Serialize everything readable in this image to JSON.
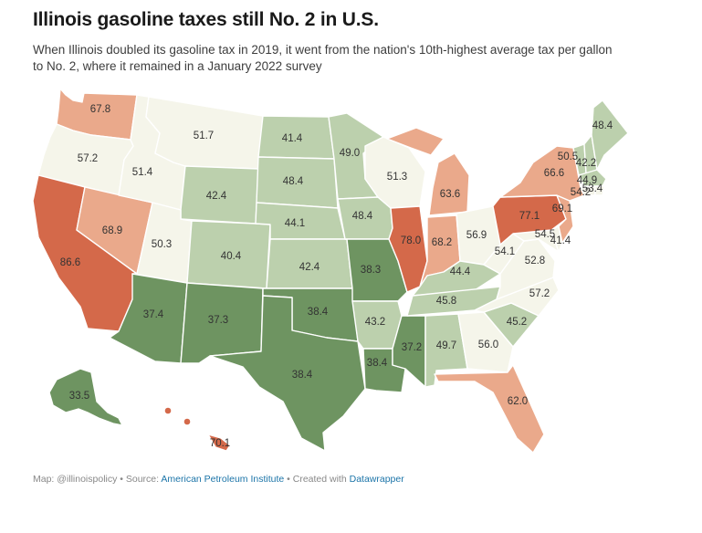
{
  "title": "Illinois gasoline taxes still No. 2 in U.S.",
  "subtitle": "When Illinois doubled its gasoline tax in 2019, it went from the nation's 10th-highest average tax per gallon to No. 2, where it remained in a January 2022 survey",
  "footer": {
    "prefix": "Map: @illinoispolicy",
    "separator": " • ",
    "source_label": "Source: ",
    "source_link": "American Petroleum Institute",
    "created_label": "Created with ",
    "created_link": "Datawrapper"
  },
  "colors": {
    "dark_green": "#6e9461",
    "light_green": "#bcd0ad",
    "pale": "#f5f5ea",
    "light_salmon": "#eaa98b",
    "dark_salmon": "#d4694a",
    "border": "#ffffff"
  },
  "states": {
    "WA": "67.8",
    "OR": "57.2",
    "CA": "86.6",
    "NV": "68.9",
    "ID": "51.4",
    "MT": "51.7",
    "WY": "42.4",
    "UT": "50.3",
    "AZ": "37.4",
    "CO": "40.4",
    "NM": "37.3",
    "ND": "41.4",
    "SD": "48.4",
    "NE": "44.1",
    "KS": "42.4",
    "OK": "38.4",
    "TX": "38.4",
    "MN": "49.0",
    "IA": "48.4",
    "MO": "38.3",
    "AR": "43.2",
    "LA": "38.4",
    "WI": "51.3",
    "IL": "78.0",
    "MS": "37.2",
    "MI": "63.6",
    "IN": "68.2",
    "KY": "44.4",
    "TN": "45.8",
    "AL": "49.7",
    "OH": "56.9",
    "WV": "54.1",
    "VA": "52.8",
    "NC": "57.2",
    "SC": "45.2",
    "GA": "56.0",
    "FL": "62.0",
    "PA": "77.1",
    "NY": "66.6",
    "VT": "50.5",
    "NH": "42.2",
    "ME": "48.4",
    "MA": "44.9",
    "CT": "54.2",
    "RI": "53.4",
    "NJ": "69.1",
    "DE": "54.5",
    "MD": "41.4",
    "AK": "33.5",
    "HI": "70.1"
  },
  "state_categories": {
    "WA": "light_salmon",
    "OR": "pale",
    "CA": "dark_salmon",
    "NV": "light_salmon",
    "ID": "pale",
    "MT": "pale",
    "WY": "light_green",
    "UT": "pale",
    "AZ": "dark_green",
    "CO": "light_green",
    "NM": "dark_green",
    "ND": "light_green",
    "SD": "light_green",
    "NE": "light_green",
    "KS": "light_green",
    "OK": "dark_green",
    "TX": "dark_green",
    "MN": "light_green",
    "IA": "light_green",
    "MO": "dark_green",
    "AR": "light_green",
    "LA": "dark_green",
    "WI": "pale",
    "IL": "dark_salmon",
    "MS": "dark_green",
    "MI": "light_salmon",
    "IN": "light_salmon",
    "KY": "light_green",
    "TN": "light_green",
    "AL": "light_green",
    "OH": "pale",
    "WV": "pale",
    "VA": "pale",
    "NC": "pale",
    "SC": "light_green",
    "GA": "pale",
    "FL": "light_salmon",
    "PA": "dark_salmon",
    "NY": "light_salmon",
    "VT": "light_green",
    "NH": "light_green",
    "ME": "light_green",
    "MA": "light_green",
    "CT": "pale",
    "RI": "pale",
    "NJ": "light_salmon",
    "DE": "pale",
    "MD": "pale",
    "AK": "dark_green",
    "HI": "dark_salmon"
  }
}
